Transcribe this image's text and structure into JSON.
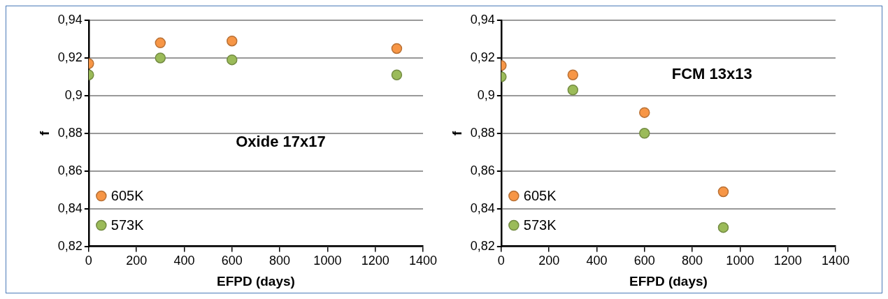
{
  "chart_data": [
    {
      "type": "scatter",
      "xlabel": "EFPD (days)",
      "ylabel": "f",
      "annotations": [
        "Oxide 17x17"
      ],
      "x": [
        0,
        300,
        600,
        1290
      ],
      "xlim": [
        0,
        1400
      ],
      "xticks": [
        0,
        200,
        400,
        600,
        800,
        1000,
        1200,
        1400
      ],
      "ylim": [
        0.82,
        0.94
      ],
      "yticks": [
        {
          "value": 0.82,
          "label": "0,82"
        },
        {
          "value": 0.84,
          "label": "0,84"
        },
        {
          "value": 0.86,
          "label": "0,86"
        },
        {
          "value": 0.88,
          "label": "0,88"
        },
        {
          "value": 0.9,
          "label": "0,9"
        },
        {
          "value": 0.92,
          "label": "0,92"
        },
        {
          "value": 0.94,
          "label": "0,94"
        }
      ],
      "grid": "y",
      "legend": "bottom left",
      "marker": "circle",
      "series": [
        {
          "name": "605K",
          "color": "#f79646",
          "values": [
            0.917,
            0.928,
            0.929,
            0.925
          ]
        },
        {
          "name": "573K",
          "color": "#9bbb59",
          "values": [
            0.911,
            0.92,
            0.919,
            0.911
          ]
        }
      ]
    },
    {
      "type": "scatter",
      "xlabel": "EFPD (days)",
      "ylabel": "f",
      "annotations": [
        "FCM 13x13"
      ],
      "x": [
        0,
        300,
        600,
        930
      ],
      "xlim": [
        0,
        1400
      ],
      "xticks": [
        0,
        200,
        400,
        600,
        800,
        1000,
        1200,
        1400
      ],
      "ylim": [
        0.82,
        0.94
      ],
      "yticks": [
        {
          "value": 0.82,
          "label": "0,82"
        },
        {
          "value": 0.84,
          "label": "0,84"
        },
        {
          "value": 0.86,
          "label": "0,86"
        },
        {
          "value": 0.88,
          "label": "0,88"
        },
        {
          "value": 0.9,
          "label": "0,9"
        },
        {
          "value": 0.92,
          "label": "0,92"
        },
        {
          "value": 0.94,
          "label": "0,94"
        }
      ],
      "grid": "y",
      "legend": "bottom left",
      "marker": "circle",
      "series": [
        {
          "name": "605K",
          "color": "#f79646",
          "values": [
            0.916,
            0.911,
            0.891,
            0.849
          ]
        },
        {
          "name": "573K",
          "color": "#9bbb59",
          "values": [
            0.91,
            0.903,
            0.88,
            0.83
          ]
        }
      ]
    }
  ]
}
